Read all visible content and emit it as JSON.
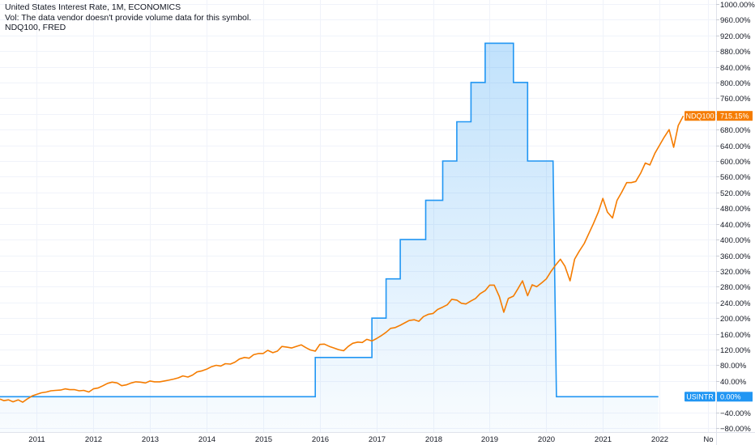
{
  "legend": {
    "line1": "United States Interest Rate, 1M, ECONOMICS",
    "line2": "Vol: The data vendor doesn't provide volume data for this symbol.",
    "line3": "NDQ100, FRED"
  },
  "colors": {
    "usintr": "#2196f3",
    "ndq100": "#f57c00",
    "grid": "#f0f3fa",
    "axis_text": "#131722"
  },
  "chart_data": {
    "type": "line",
    "y_axis": {
      "unit": "%",
      "ylim": [
        -90,
        1010
      ],
      "ticks": [
        "1000.00%",
        "960.00%",
        "920.00%",
        "880.00%",
        "840.00%",
        "800.00%",
        "760.00%",
        "720.00%",
        "680.00%",
        "640.00%",
        "600.00%",
        "560.00%",
        "520.00%",
        "480.00%",
        "440.00%",
        "400.00%",
        "360.00%",
        "320.00%",
        "280.00%",
        "240.00%",
        "200.00%",
        "160.00%",
        "120.00%",
        "80.00%",
        "40.00%",
        "−40.00%",
        "−80.00%"
      ],
      "tick_values": [
        1000,
        960,
        920,
        880,
        840,
        800,
        760,
        720,
        680,
        640,
        600,
        560,
        520,
        480,
        440,
        400,
        360,
        320,
        280,
        240,
        200,
        160,
        120,
        80,
        40,
        -40,
        -80
      ]
    },
    "x_axis": {
      "xlim": [
        2010.35,
        2023.0
      ],
      "ticks": [
        "2011",
        "2012",
        "2013",
        "2014",
        "2015",
        "2016",
        "2017",
        "2018",
        "2019",
        "2020",
        "2021",
        "2022",
        "No"
      ],
      "tick_values": [
        2011,
        2012,
        2013,
        2014,
        2015,
        2016,
        2017,
        2018,
        2019,
        2020,
        2021,
        2022,
        2022.85
      ]
    },
    "grid": true,
    "series": [
      {
        "name": "USINTR",
        "style": "step-area",
        "last_value_label": "0.00%",
        "points": [
          [
            2010.35,
            0
          ],
          [
            2015.92,
            0
          ],
          [
            2015.92,
            100
          ],
          [
            2016.92,
            100
          ],
          [
            2016.92,
            200
          ],
          [
            2017.17,
            200
          ],
          [
            2017.17,
            300
          ],
          [
            2017.42,
            300
          ],
          [
            2017.42,
            400
          ],
          [
            2017.87,
            400
          ],
          [
            2017.87,
            500
          ],
          [
            2018.17,
            500
          ],
          [
            2018.17,
            600
          ],
          [
            2018.42,
            600
          ],
          [
            2018.42,
            700
          ],
          [
            2018.67,
            700
          ],
          [
            2018.67,
            800
          ],
          [
            2018.92,
            800
          ],
          [
            2018.92,
            900
          ],
          [
            2019.42,
            900
          ],
          [
            2019.42,
            800
          ],
          [
            2019.67,
            800
          ],
          [
            2019.67,
            600
          ],
          [
            2020.12,
            600
          ],
          [
            2020.18,
            0
          ],
          [
            2021.98,
            0
          ]
        ]
      },
      {
        "name": "NDQ100",
        "style": "line",
        "last_value_label": "715.15%",
        "points": [
          [
            2010.35,
            -6
          ],
          [
            2010.42,
            -10
          ],
          [
            2010.5,
            -8
          ],
          [
            2010.58,
            -13
          ],
          [
            2010.67,
            -8
          ],
          [
            2010.75,
            -14
          ],
          [
            2010.83,
            -6
          ],
          [
            2010.92,
            2
          ],
          [
            2011.0,
            6
          ],
          [
            2011.08,
            10
          ],
          [
            2011.17,
            12
          ],
          [
            2011.25,
            15
          ],
          [
            2011.33,
            16
          ],
          [
            2011.42,
            17
          ],
          [
            2011.5,
            20
          ],
          [
            2011.58,
            18
          ],
          [
            2011.67,
            18
          ],
          [
            2011.75,
            15
          ],
          [
            2011.83,
            16
          ],
          [
            2011.92,
            12
          ],
          [
            2012.0,
            20
          ],
          [
            2012.08,
            22
          ],
          [
            2012.17,
            28
          ],
          [
            2012.25,
            34
          ],
          [
            2012.33,
            37
          ],
          [
            2012.42,
            35
          ],
          [
            2012.5,
            28
          ],
          [
            2012.58,
            30
          ],
          [
            2012.67,
            35
          ],
          [
            2012.75,
            38
          ],
          [
            2012.83,
            37
          ],
          [
            2012.92,
            35
          ],
          [
            2013.0,
            40
          ],
          [
            2013.08,
            38
          ],
          [
            2013.17,
            38
          ],
          [
            2013.25,
            40
          ],
          [
            2013.33,
            42
          ],
          [
            2013.42,
            45
          ],
          [
            2013.5,
            48
          ],
          [
            2013.58,
            53
          ],
          [
            2013.67,
            50
          ],
          [
            2013.75,
            55
          ],
          [
            2013.83,
            63
          ],
          [
            2013.92,
            66
          ],
          [
            2014.0,
            70
          ],
          [
            2014.08,
            76
          ],
          [
            2014.17,
            80
          ],
          [
            2014.25,
            78
          ],
          [
            2014.33,
            84
          ],
          [
            2014.42,
            83
          ],
          [
            2014.5,
            88
          ],
          [
            2014.58,
            96
          ],
          [
            2014.67,
            100
          ],
          [
            2014.75,
            98
          ],
          [
            2014.83,
            107
          ],
          [
            2014.92,
            110
          ],
          [
            2015.0,
            110
          ],
          [
            2015.08,
            118
          ],
          [
            2015.17,
            112
          ],
          [
            2015.25,
            116
          ],
          [
            2015.33,
            128
          ],
          [
            2015.42,
            126
          ],
          [
            2015.5,
            124
          ],
          [
            2015.58,
            128
          ],
          [
            2015.67,
            132
          ],
          [
            2015.75,
            125
          ],
          [
            2015.83,
            119
          ],
          [
            2015.92,
            116
          ],
          [
            2016.0,
            133
          ],
          [
            2016.08,
            134
          ],
          [
            2016.17,
            128
          ],
          [
            2016.25,
            124
          ],
          [
            2016.33,
            120
          ],
          [
            2016.42,
            117
          ],
          [
            2016.5,
            128
          ],
          [
            2016.58,
            136
          ],
          [
            2016.67,
            139
          ],
          [
            2016.75,
            138
          ],
          [
            2016.83,
            146
          ],
          [
            2016.92,
            142
          ],
          [
            2017.0,
            148
          ],
          [
            2017.08,
            155
          ],
          [
            2017.17,
            164
          ],
          [
            2017.25,
            174
          ],
          [
            2017.33,
            176
          ],
          [
            2017.42,
            182
          ],
          [
            2017.5,
            188
          ],
          [
            2017.58,
            194
          ],
          [
            2017.67,
            196
          ],
          [
            2017.75,
            192
          ],
          [
            2017.83,
            204
          ],
          [
            2017.92,
            210
          ],
          [
            2018.0,
            212
          ],
          [
            2018.08,
            222
          ],
          [
            2018.17,
            228
          ],
          [
            2018.25,
            234
          ],
          [
            2018.33,
            248
          ],
          [
            2018.42,
            246
          ],
          [
            2018.5,
            238
          ],
          [
            2018.58,
            236
          ],
          [
            2018.67,
            244
          ],
          [
            2018.75,
            250
          ],
          [
            2018.83,
            262
          ],
          [
            2018.92,
            270
          ],
          [
            2019.0,
            284
          ],
          [
            2019.08,
            284
          ],
          [
            2019.17,
            255
          ],
          [
            2019.25,
            215
          ],
          [
            2019.33,
            250
          ],
          [
            2019.42,
            256
          ],
          [
            2019.5,
            275
          ],
          [
            2019.58,
            295
          ],
          [
            2019.67,
            257
          ],
          [
            2019.75,
            285
          ],
          [
            2019.83,
            280
          ],
          [
            2019.92,
            290
          ],
          [
            2020.0,
            300
          ],
          [
            2020.08,
            318
          ],
          [
            2020.17,
            336
          ],
          [
            2020.25,
            350
          ],
          [
            2020.33,
            332
          ],
          [
            2020.42,
            295
          ],
          [
            2020.5,
            350
          ],
          [
            2020.58,
            370
          ],
          [
            2020.67,
            390
          ],
          [
            2020.75,
            415
          ],
          [
            2020.83,
            440
          ],
          [
            2020.92,
            470
          ],
          [
            2021.0,
            505
          ],
          [
            2021.08,
            470
          ],
          [
            2021.17,
            455
          ],
          [
            2021.25,
            500
          ],
          [
            2021.33,
            520
          ],
          [
            2021.42,
            545
          ],
          [
            2021.5,
            545
          ],
          [
            2021.58,
            548
          ],
          [
            2021.67,
            570
          ],
          [
            2021.75,
            595
          ],
          [
            2021.83,
            590
          ],
          [
            2021.92,
            620
          ],
          [
            2022.0,
            640
          ],
          [
            2022.08,
            660
          ],
          [
            2022.17,
            680
          ],
          [
            2022.25,
            635
          ],
          [
            2022.33,
            690
          ],
          [
            2022.42,
            715
          ]
        ]
      }
    ]
  }
}
